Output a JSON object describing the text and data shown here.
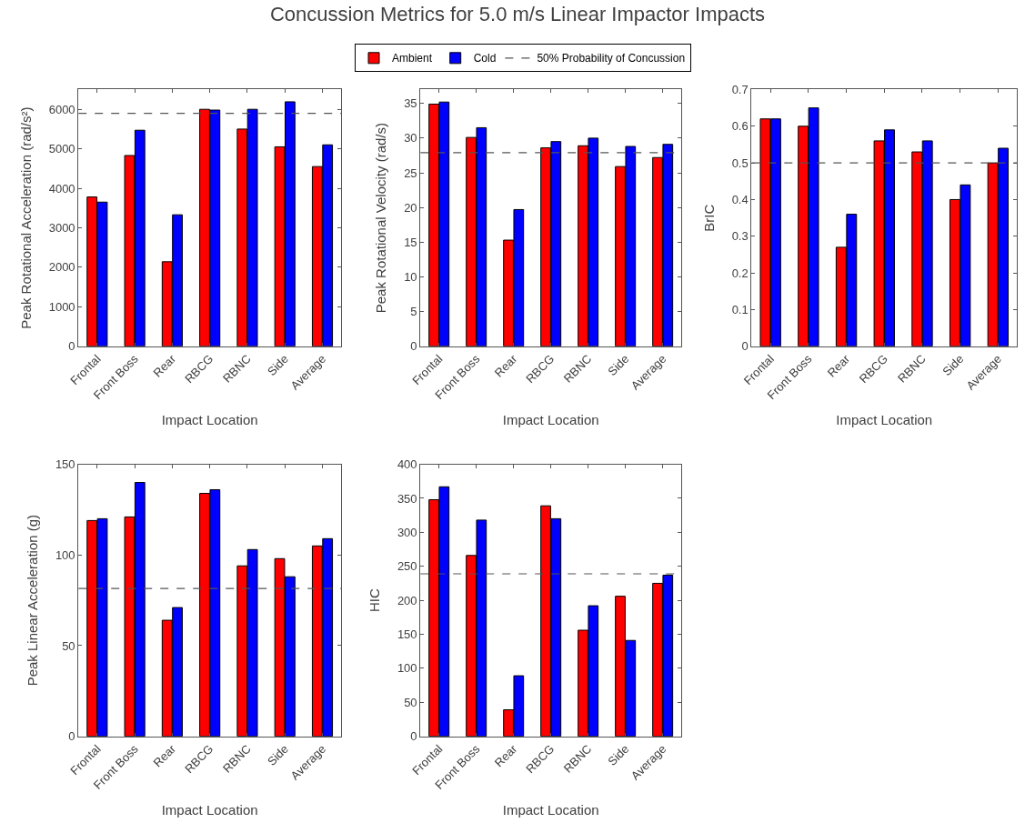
{
  "chart_data": [
    {
      "type": "bar",
      "title": "Concussion Metrics for 5.0 m/s Linear Impactor Impacts",
      "xlabel": "Impact Location",
      "ylabel": "Peak Rotational Acceleration (rad/s²)",
      "categories": [
        "Frontal",
        "Front Boss",
        "Rear",
        "RBCG",
        "RBNC",
        "Side",
        "Average"
      ],
      "legend": "top",
      "series": [
        {
          "name": "Ambient",
          "color": "#ff0000",
          "values": [
            3780,
            4830,
            2140,
            6000,
            5500,
            5050,
            4550
          ]
        },
        {
          "name": "Cold",
          "color": "#0000ff",
          "values": [
            3650,
            5470,
            3330,
            5980,
            6000,
            6190,
            5100
          ]
        }
      ],
      "ylim": [
        0,
        6500
      ],
      "yticks": [
        0,
        1000,
        2000,
        3000,
        4000,
        5000,
        6000
      ],
      "ref_lines": [
        {
          "axis": "y",
          "value": 5900,
          "label": "50% Probability of Concussion",
          "color": "#555555",
          "line_style": "dashed"
        }
      ]
    },
    {
      "type": "bar",
      "xlabel": "Impact Location",
      "ylabel": "Peak Rotational Velocity (rad/s)",
      "categories": [
        "Frontal",
        "Front Boss",
        "Rear",
        "RBCG",
        "RBNC",
        "Side",
        "Average"
      ],
      "series": [
        {
          "color": "#ff0000",
          "values": [
            34.9,
            30.1,
            15.3,
            28.6,
            28.9,
            25.9,
            27.2
          ]
        },
        {
          "color": "#0000ff",
          "values": [
            35.2,
            31.5,
            19.7,
            29.5,
            30.0,
            28.8,
            29.1
          ]
        }
      ],
      "ylim": [
        0,
        37
      ],
      "yticks": [
        0,
        5,
        10,
        15,
        20,
        25,
        30,
        35
      ],
      "ref_lines": [
        {
          "axis": "y",
          "value": 27.9,
          "color": "#555555",
          "line_style": "dashed"
        }
      ]
    },
    {
      "type": "bar",
      "xlabel": "Impact Location",
      "ylabel": "BrIC",
      "categories": [
        "Frontal",
        "Front Boss",
        "Rear",
        "RBCG",
        "RBNC",
        "Side",
        "Average"
      ],
      "series": [
        {
          "color": "#ff0000",
          "values": [
            0.62,
            0.6,
            0.27,
            0.56,
            0.53,
            0.4,
            0.5
          ]
        },
        {
          "color": "#0000ff",
          "values": [
            0.62,
            0.65,
            0.36,
            0.59,
            0.56,
            0.44,
            0.54
          ]
        }
      ],
      "ylim": [
        0,
        0.7
      ],
      "yticks": [
        0,
        0.1,
        0.2,
        0.3,
        0.4,
        0.5,
        0.6,
        0.7
      ],
      "ref_lines": [
        {
          "axis": "y",
          "value": 0.5,
          "color": "#555555",
          "line_style": "dashed"
        }
      ]
    },
    {
      "type": "bar",
      "xlabel": "Impact Location",
      "ylabel": "Peak Linear Acceleration (g)",
      "categories": [
        "Frontal",
        "Front Boss",
        "Rear",
        "RBCG",
        "RBNC",
        "Side",
        "Average"
      ],
      "series": [
        {
          "color": "#ff0000",
          "values": [
            119,
            121,
            64,
            134,
            94,
            98,
            105
          ]
        },
        {
          "color": "#0000ff",
          "values": [
            120,
            140,
            71,
            136,
            103,
            88,
            109
          ]
        }
      ],
      "ylim": [
        0,
        150
      ],
      "yticks": [
        0,
        50,
        100,
        150
      ],
      "ref_lines": [
        {
          "axis": "y",
          "value": 81.5,
          "color": "#555555",
          "line_style": "dashed"
        }
      ]
    },
    {
      "type": "bar",
      "xlabel": "Impact Location",
      "ylabel": "HIC",
      "categories": [
        "Frontal",
        "Front Boss",
        "Rear",
        "RBCG",
        "RBNC",
        "Side",
        "Average"
      ],
      "series": [
        {
          "color": "#ff0000",
          "values": [
            348,
            266,
            39,
            339,
            156,
            206,
            225
          ]
        },
        {
          "color": "#0000ff",
          "values": [
            367,
            318,
            89,
            320,
            192,
            141,
            237
          ]
        }
      ],
      "ylim": [
        0,
        400
      ],
      "yticks": [
        0,
        50,
        100,
        150,
        200,
        250,
        300,
        350,
        400
      ],
      "ref_lines": [
        {
          "axis": "y",
          "value": 239,
          "color": "#555555",
          "line_style": "dashed"
        }
      ]
    }
  ]
}
